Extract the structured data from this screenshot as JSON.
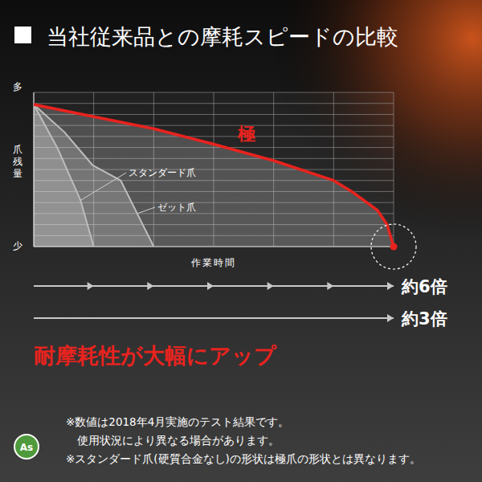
{
  "chart_data": {
    "type": "line",
    "title": "当社従来品との摩耗スピードの比較",
    "x_label": "作業時間",
    "y_label": "爪残量",
    "y_high_label": "多",
    "y_low_label": "少",
    "xlim": [
      0,
      6
    ],
    "xticks": [
      0,
      1,
      2,
      3,
      4,
      5,
      6
    ],
    "ylim": [
      0,
      14
    ],
    "yticks": [
      0,
      1,
      2,
      3,
      4,
      5,
      6,
      7,
      8,
      9,
      10,
      11,
      12,
      13,
      14
    ],
    "grid": true,
    "tick_labels": false,
    "series": [
      {
        "name": "スタンダード爪",
        "color": "#bdbdbd",
        "x": [
          0,
          0.4,
          0.78,
          1
        ],
        "values": [
          12.9,
          8.9,
          4.2,
          0
        ]
      },
      {
        "name": "ゼット爪",
        "color": "#bdbdbd",
        "x": [
          0,
          0.51,
          0.98,
          1.45,
          2
        ],
        "values": [
          12.9,
          10.4,
          7.4,
          6.0,
          0
        ]
      },
      {
        "name": "極",
        "color": "#e8231e",
        "marker": "end",
        "x": [
          0,
          1,
          2,
          3,
          4,
          5,
          5.33,
          5.73,
          5.89,
          6
        ],
        "values": [
          12.9,
          11.8,
          10.7,
          9.3,
          7.8,
          6.0,
          4.9,
          3.3,
          2.0,
          0
        ]
      }
    ],
    "annotations": [
      "約6倍",
      "約3倍"
    ],
    "headline": "耐摩耗性が大幅にアップ",
    "notes": [
      "※数値は2018年4月実施のテスト結果です。",
      "使用状況により異なる場合があります。",
      "※スタンダード爪(硬質合金なし)の形状は極爪の形状とは異なります。"
    ],
    "logo": "As"
  }
}
